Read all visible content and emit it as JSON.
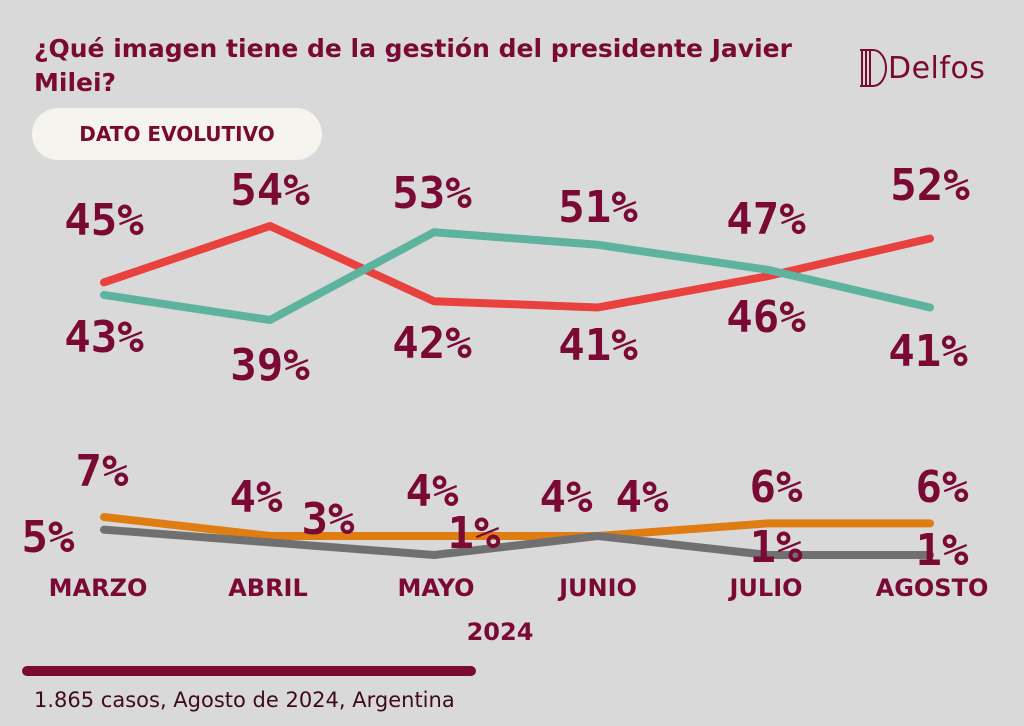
{
  "header": {
    "title": "¿Qué imagen tiene de la gestión del presidente Javier Milei?",
    "tag": "DATO EVOLUTIVO",
    "logo_text": "Delfos"
  },
  "footer": {
    "source": "1.865 casos, Agosto de 2024, Argentina"
  },
  "chart_data": {
    "type": "line",
    "categories": [
      "MARZO",
      "ABRIL",
      "MAYO",
      "JUNIO",
      "JULIO",
      "AGOSTO"
    ],
    "x_group_label": "2024",
    "legend": "none",
    "grid": false,
    "series": [
      {
        "color": "#e8413e",
        "values": [
          45,
          54,
          42,
          41,
          46,
          52
        ],
        "labels": [
          "45%",
          "54%",
          "42%",
          "41%",
          "46%",
          "52%"
        ]
      },
      {
        "color": "#5db39e",
        "values": [
          43,
          39,
          53,
          51,
          47,
          41
        ],
        "labels": [
          "43%",
          "39%",
          "53%",
          "51%",
          "47%",
          "41%"
        ]
      },
      {
        "color": "#e07d12",
        "values": [
          7,
          4,
          4,
          4,
          6,
          6
        ],
        "labels": [
          "7%",
          "4%",
          "4%",
          "4%",
          "6%",
          "6%"
        ]
      },
      {
        "color": "#707070",
        "values": [
          5,
          3,
          1,
          4,
          1,
          1
        ],
        "labels": [
          "5%",
          "3%",
          "1%",
          "4%",
          "1%",
          "1%"
        ]
      }
    ],
    "colors": {
      "text": "#7a0a33",
      "background": "#d9d9d9"
    }
  }
}
